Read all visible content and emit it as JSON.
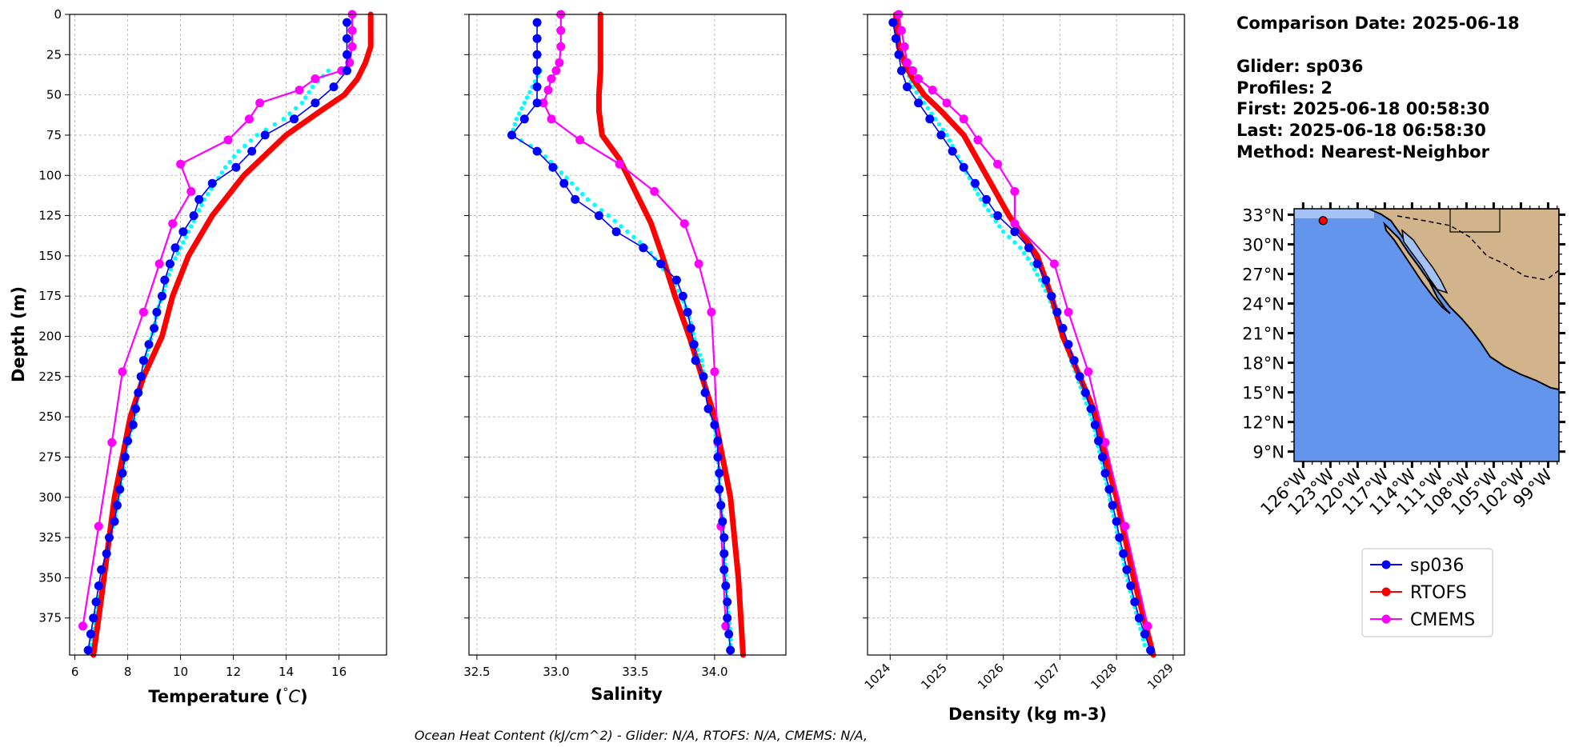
{
  "colors": {
    "glider": "#0000ff",
    "rtofs": "#ff0000",
    "cmems": "#ff00ff",
    "cmems_alt": "#00ffff",
    "ocean": "#6495ed",
    "land": "#d2b48c",
    "shelf": "#a4c2f4",
    "grid": "#b0b0b0"
  },
  "info": {
    "comparison_date": "Comparison Date: 2025-06-18",
    "glider": "Glider: sp036",
    "profiles": "Profiles: 2",
    "first": "First: 2025-06-18 00:58:30",
    "last": "Last: 2025-06-18 06:58:30",
    "method": "Method: Nearest-Neighbor"
  },
  "footer": "Ocean Heat Content (kJ/cm^2) - Glider: N/A,  RTOFS: N/A,  CMEMS: N/A,",
  "legend": [
    "sp036",
    "RTOFS",
    "CMEMS"
  ],
  "map": {
    "lat_ticks": [
      "33°N",
      "30°N",
      "27°N",
      "24°N",
      "21°N",
      "18°N",
      "15°N",
      "12°N",
      "9°N"
    ],
    "lon_ticks": [
      "126°W",
      "123°W",
      "120°W",
      "117°W",
      "114°W",
      "111°W",
      "108°W",
      "105°W",
      "102°W",
      "99°W"
    ],
    "glider_position": {
      "lon": -123.8,
      "lat": 32.4
    }
  },
  "chart_data": [
    {
      "type": "line",
      "panel": "temperature",
      "xlabel": "Temperature (°C)",
      "ylabel": "Depth (m)",
      "xlim": [
        5.8,
        17.8
      ],
      "ylim": [
        398,
        0
      ],
      "xticks": [
        "6",
        "8",
        "10",
        "12",
        "14",
        "16"
      ],
      "yticks": [
        "0",
        "25",
        "50",
        "75",
        "100",
        "125",
        "150",
        "175",
        "200",
        "225",
        "250",
        "275",
        "300",
        "325",
        "350",
        "375"
      ],
      "grid": true,
      "series": [
        {
          "name": "sp036",
          "depth": [
            5,
            15,
            25,
            35,
            45,
            55,
            65,
            75,
            85,
            95,
            105,
            115,
            125,
            135,
            145,
            155,
            165,
            175,
            185,
            195,
            205,
            215,
            225,
            235,
            245,
            255,
            265,
            275,
            285,
            295,
            305,
            315,
            325,
            335,
            345,
            355,
            365,
            375,
            385,
            395
          ],
          "values": [
            16.3,
            16.3,
            16.3,
            16.3,
            15.8,
            15.1,
            14.3,
            13.2,
            12.7,
            12.1,
            11.2,
            10.7,
            10.5,
            10.1,
            9.8,
            9.6,
            9.4,
            9.3,
            9.1,
            9.0,
            8.8,
            8.6,
            8.5,
            8.4,
            8.3,
            8.2,
            8.0,
            7.9,
            7.8,
            7.7,
            7.6,
            7.5,
            7.3,
            7.2,
            7.0,
            6.9,
            6.8,
            6.7,
            6.6,
            6.5
          ]
        },
        {
          "name": "cmems_alt",
          "depth": [
            35,
            45,
            55,
            65,
            75,
            85,
            95,
            105,
            115,
            125,
            135,
            145,
            155,
            165,
            175,
            185,
            195,
            205,
            215,
            225,
            235,
            245,
            255,
            265,
            275,
            285,
            295,
            305,
            315,
            325,
            335,
            345,
            355,
            365,
            375,
            385,
            395
          ],
          "values": [
            15.6,
            15.0,
            14.6,
            13.9,
            12.9,
            12.2,
            11.7,
            11.3,
            10.9,
            10.6,
            10.3,
            10.0,
            9.7,
            9.5,
            9.3,
            9.1,
            9.0,
            8.8,
            8.7,
            8.6,
            8.4,
            8.3,
            8.2,
            8.0,
            7.9,
            7.8,
            7.7,
            7.6,
            7.5,
            7.3,
            7.2,
            7.1,
            7.0,
            6.9,
            6.8,
            6.7,
            6.6
          ]
        },
        {
          "name": "RTOFS",
          "depth": [
            0,
            10,
            20,
            25,
            30,
            40,
            50,
            60,
            75,
            100,
            125,
            150,
            175,
            200,
            225,
            250,
            275,
            300,
            325,
            350,
            375,
            398
          ],
          "values": [
            17.2,
            17.2,
            17.2,
            17.1,
            17.0,
            16.7,
            16.2,
            15.3,
            14.0,
            12.4,
            11.2,
            10.3,
            9.7,
            9.3,
            8.6,
            8.1,
            7.8,
            7.5,
            7.3,
            7.1,
            6.9,
            6.7
          ]
        },
        {
          "name": "CMEMS",
          "depth": [
            0,
            10,
            20,
            30,
            35,
            40,
            47,
            55,
            65,
            78,
            93,
            110,
            130,
            155,
            185,
            222,
            266,
            318,
            380
          ],
          "values": [
            16.5,
            16.5,
            16.5,
            16.4,
            16.1,
            15.1,
            14.5,
            13.0,
            12.6,
            11.8,
            10.0,
            10.4,
            9.7,
            9.2,
            8.6,
            7.8,
            7.4,
            6.9,
            6.3
          ]
        }
      ]
    },
    {
      "type": "line",
      "panel": "salinity",
      "xlabel": "Salinity",
      "xlim": [
        32.45,
        34.45
      ],
      "ylim": [
        398,
        0
      ],
      "xticks": [
        "32.5",
        "33.0",
        "33.5",
        "34.0"
      ],
      "grid": true,
      "series": [
        {
          "name": "sp036",
          "depth": [
            5,
            15,
            25,
            35,
            45,
            55,
            65,
            75,
            85,
            95,
            105,
            115,
            125,
            135,
            145,
            155,
            165,
            175,
            185,
            195,
            205,
            215,
            225,
            235,
            245,
            255,
            265,
            275,
            285,
            295,
            305,
            315,
            325,
            335,
            345,
            355,
            365,
            375,
            385,
            395
          ],
          "values": [
            32.88,
            32.88,
            32.88,
            32.88,
            32.88,
            32.88,
            32.8,
            32.72,
            32.88,
            32.98,
            33.05,
            33.12,
            33.27,
            33.38,
            33.55,
            33.66,
            33.76,
            33.8,
            33.83,
            33.85,
            33.87,
            33.88,
            33.93,
            33.94,
            33.96,
            34.0,
            34.02,
            34.02,
            34.03,
            34.03,
            34.04,
            34.05,
            34.06,
            34.06,
            34.06,
            34.07,
            34.08,
            34.08,
            34.09,
            34.1
          ]
        },
        {
          "name": "cmems_alt",
          "depth": [
            35,
            45,
            55,
            65,
            75,
            85,
            95,
            105,
            115,
            125,
            135,
            145,
            155,
            165,
            175,
            185,
            195,
            205,
            215,
            225,
            235,
            245,
            255,
            265,
            275,
            285,
            295,
            305,
            315,
            325,
            335,
            345,
            355,
            365,
            375,
            385,
            395
          ],
          "values": [
            32.9,
            32.85,
            32.8,
            32.75,
            32.72,
            32.9,
            33.0,
            33.1,
            33.2,
            33.33,
            33.45,
            33.57,
            33.65,
            33.73,
            33.79,
            33.83,
            33.86,
            33.88,
            33.92,
            33.93,
            33.95,
            33.97,
            34.0,
            34.01,
            34.02,
            34.03,
            34.03,
            34.04,
            34.05,
            34.05,
            34.06,
            34.07,
            34.07,
            34.08,
            34.09,
            34.1,
            34.1
          ]
        },
        {
          "name": "RTOFS",
          "depth": [
            0,
            20,
            35,
            50,
            60,
            75,
            90,
            110,
            130,
            150,
            175,
            200,
            225,
            250,
            275,
            300,
            350,
            398
          ],
          "values": [
            33.28,
            33.28,
            33.28,
            33.27,
            33.27,
            33.29,
            33.4,
            33.5,
            33.6,
            33.67,
            33.75,
            33.84,
            33.92,
            34.0,
            34.05,
            34.1,
            34.15,
            34.18
          ]
        },
        {
          "name": "CMEMS",
          "depth": [
            0,
            10,
            20,
            30,
            35,
            40,
            47,
            55,
            65,
            78,
            93,
            110,
            130,
            155,
            185,
            222,
            266,
            318,
            380
          ],
          "values": [
            33.03,
            33.03,
            33.03,
            33.02,
            33.0,
            32.97,
            32.95,
            32.92,
            32.97,
            33.15,
            33.4,
            33.62,
            33.81,
            33.9,
            33.98,
            34.0,
            34.02,
            34.04,
            34.07
          ]
        }
      ]
    },
    {
      "type": "line",
      "panel": "density",
      "xlabel": "Density (kg m-3)",
      "xlim": [
        1023.6,
        1029.2
      ],
      "ylim": [
        398,
        0
      ],
      "xticks": [
        "1024",
        "1025",
        "1026",
        "1027",
        "1028",
        "1029"
      ],
      "grid": true,
      "series": [
        {
          "name": "sp036",
          "depth": [
            5,
            15,
            25,
            35,
            45,
            55,
            65,
            75,
            85,
            95,
            105,
            115,
            125,
            135,
            145,
            155,
            165,
            175,
            185,
            195,
            205,
            215,
            225,
            235,
            245,
            255,
            265,
            275,
            285,
            295,
            305,
            315,
            325,
            335,
            345,
            355,
            365,
            375,
            385,
            395
          ],
          "values": [
            1024.05,
            1024.1,
            1024.15,
            1024.2,
            1024.3,
            1024.5,
            1024.7,
            1024.9,
            1025.1,
            1025.3,
            1025.5,
            1025.7,
            1025.9,
            1026.2,
            1026.45,
            1026.6,
            1026.75,
            1026.85,
            1026.95,
            1027.05,
            1027.15,
            1027.25,
            1027.35,
            1027.45,
            1027.55,
            1027.62,
            1027.68,
            1027.75,
            1027.8,
            1027.87,
            1027.93,
            1028.0,
            1028.05,
            1028.12,
            1028.18,
            1028.25,
            1028.32,
            1028.4,
            1028.5,
            1028.6
          ]
        },
        {
          "name": "cmems_alt",
          "depth": [
            35,
            45,
            55,
            65,
            75,
            85,
            95,
            105,
            115,
            125,
            135,
            145,
            155,
            165,
            175,
            185,
            195,
            205,
            215,
            225,
            235,
            245,
            255,
            265,
            275,
            285,
            295,
            305,
            315,
            325,
            335,
            345,
            355,
            365,
            375,
            385,
            395
          ],
          "values": [
            1024.3,
            1024.4,
            1024.6,
            1024.8,
            1025.0,
            1025.15,
            1025.3,
            1025.45,
            1025.6,
            1025.8,
            1026.0,
            1026.3,
            1026.5,
            1026.65,
            1026.8,
            1026.9,
            1027.0,
            1027.1,
            1027.2,
            1027.3,
            1027.4,
            1027.5,
            1027.6,
            1027.65,
            1027.72,
            1027.78,
            1027.85,
            1027.9,
            1027.97,
            1028.03,
            1028.1,
            1028.15,
            1028.22,
            1028.3,
            1028.37,
            1028.45,
            1028.52
          ]
        },
        {
          "name": "RTOFS",
          "depth": [
            0,
            20,
            30,
            40,
            50,
            60,
            75,
            100,
            125,
            150,
            175,
            200,
            225,
            250,
            275,
            300,
            350,
            398
          ],
          "values": [
            1024.1,
            1024.15,
            1024.25,
            1024.4,
            1024.6,
            1024.9,
            1025.3,
            1025.7,
            1026.1,
            1026.6,
            1026.85,
            1027.05,
            1027.35,
            1027.65,
            1027.8,
            1028.0,
            1028.3,
            1028.65
          ]
        },
        {
          "name": "CMEMS",
          "depth": [
            0,
            10,
            20,
            30,
            35,
            40,
            47,
            55,
            65,
            78,
            93,
            110,
            130,
            155,
            185,
            222,
            266,
            318,
            380
          ],
          "values": [
            1024.15,
            1024.2,
            1024.25,
            1024.3,
            1024.4,
            1024.5,
            1024.75,
            1025.0,
            1025.3,
            1025.55,
            1025.9,
            1026.2,
            1026.2,
            1026.9,
            1027.15,
            1027.5,
            1027.8,
            1028.15,
            1028.55
          ]
        }
      ]
    }
  ]
}
